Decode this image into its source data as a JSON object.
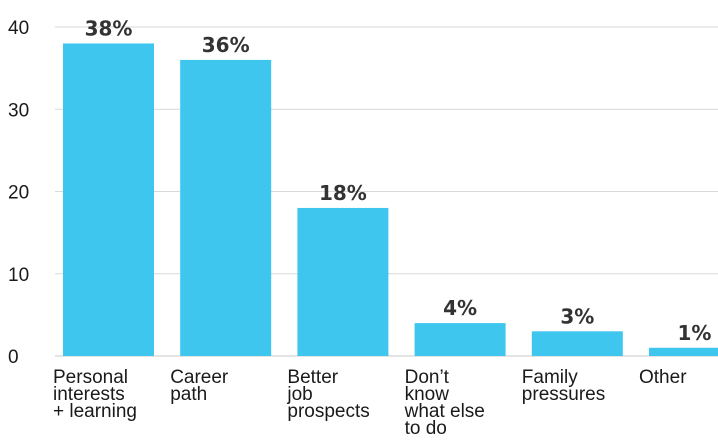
{
  "chart_data": {
    "type": "bar",
    "categories": [
      [
        "Personal",
        "interests",
        "+ learning"
      ],
      [
        "Career",
        "path"
      ],
      [
        "Better",
        "job",
        "prospects"
      ],
      [
        "Don’t",
        "know",
        "what else",
        "to do"
      ],
      [
        "Family",
        "pressures"
      ],
      [
        "Other"
      ]
    ],
    "values": [
      38,
      36,
      18,
      4,
      3,
      1
    ],
    "data_labels": [
      "38%",
      "36%",
      "18%",
      "4%",
      "3%",
      "1%"
    ],
    "title": "",
    "xlabel": "",
    "ylabel": "",
    "ylim": [
      0,
      40
    ],
    "yticks": [
      "0",
      "10",
      "20",
      "30",
      "40"
    ],
    "grid": true,
    "legend": "none",
    "colors": {
      "bar": "#3EC6EF",
      "grid": "#D9D9D9",
      "axis": "#C8C8C8",
      "text": "#1A1A1A",
      "label": "#333333"
    }
  }
}
